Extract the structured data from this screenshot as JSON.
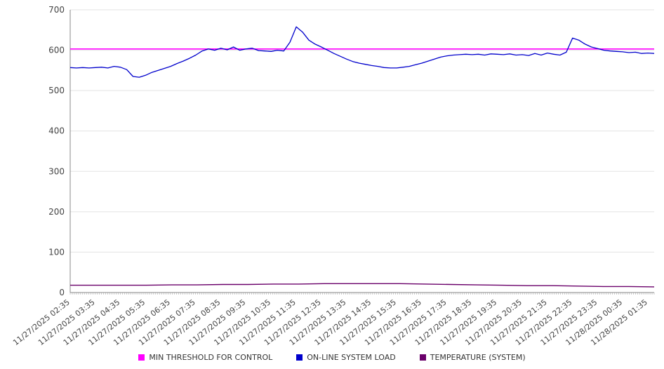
{
  "chart_data": {
    "type": "line",
    "title": "",
    "xlabel": "",
    "ylabel": "",
    "ylim": [
      0,
      700
    ],
    "yticks": [
      0,
      100,
      200,
      300,
      400,
      500,
      600,
      700
    ],
    "grid": true,
    "legend_position": "bottom",
    "x_labels": [
      "11/27/2025 02:35",
      "11/27/2025 03:35",
      "11/27/2025 04:35",
      "11/27/2025 05:35",
      "11/27/2025 06:35",
      "11/27/2025 07:35",
      "11/27/2025 08:35",
      "11/27/2025 09:35",
      "11/27/2025 10:35",
      "11/27/2025 11:35",
      "11/27/2025 12:35",
      "11/27/2025 13:35",
      "11/27/2025 14:35",
      "11/27/2025 15:35",
      "11/27/2025 16:35",
      "11/27/2025 17:35",
      "11/27/2025 18:35",
      "11/27/2025 19:35",
      "11/27/2025 20:35",
      "11/27/2025 21:35",
      "11/27/2025 22:35",
      "11/27/2025 23:35",
      "11/28/2025 00:35",
      "11/28/2025 01:35"
    ],
    "series": [
      {
        "name": "MIN THRESHOLD FOR CONTROL",
        "color": "#ff00ff",
        "width": 1.7,
        "values": [
          603,
          603
        ]
      },
      {
        "name": "ON-LINE SYSTEM LOAD",
        "color": "#0000cc",
        "width": 1.3,
        "values": [
          557,
          556,
          557,
          556,
          557,
          558,
          556,
          560,
          558,
          552,
          535,
          533,
          538,
          545,
          550,
          555,
          560,
          567,
          573,
          580,
          588,
          598,
          603,
          600,
          605,
          601,
          608,
          600,
          603,
          605,
          599,
          598,
          597,
          600,
          598,
          620,
          658,
          645,
          625,
          615,
          608,
          600,
          592,
          585,
          578,
          572,
          568,
          565,
          562,
          560,
          557,
          556,
          556,
          558,
          560,
          564,
          568,
          573,
          578,
          583,
          586,
          588,
          589,
          590,
          589,
          590,
          588,
          591,
          590,
          589,
          591,
          588,
          589,
          587,
          592,
          588,
          593,
          590,
          588,
          595,
          630,
          625,
          615,
          608,
          604,
          600,
          598,
          597,
          596,
          594,
          595,
          592,
          593,
          592
        ]
      },
      {
        "name": "TEMPERATURE (SYSTEM)",
        "color": "#6a006a",
        "width": 1.4,
        "values": [
          18,
          18,
          18,
          18,
          19,
          19,
          20,
          20,
          21,
          21,
          22,
          22,
          22,
          22,
          21,
          20,
          19,
          18,
          17,
          17,
          16,
          15,
          15,
          14
        ]
      }
    ]
  }
}
